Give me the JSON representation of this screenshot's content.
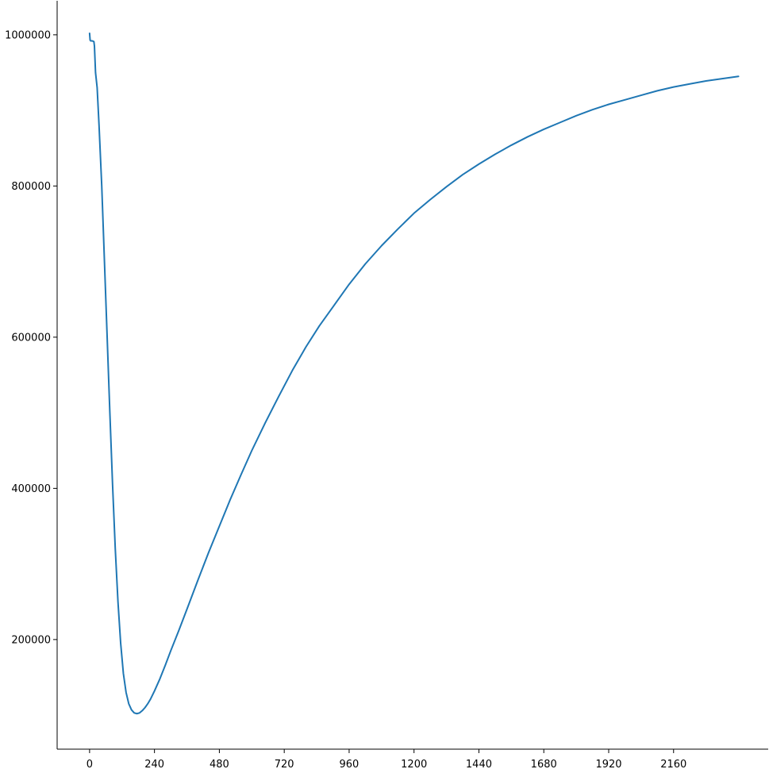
{
  "chart_data": {
    "type": "line",
    "title": "",
    "xlabel": "",
    "ylabel": "",
    "grid": false,
    "legend": "none",
    "xlim": [
      -120,
      2510
    ],
    "ylim": [
      55000,
      1045000
    ],
    "x_ticks": [
      0,
      240,
      480,
      720,
      960,
      1200,
      1440,
      1680,
      1920,
      2160
    ],
    "y_ticks": [
      200000,
      400000,
      600000,
      800000,
      1000000
    ],
    "series": [
      {
        "color": "#1f77b4",
        "x": [
          0,
          2,
          4,
          10,
          16,
          18,
          22,
          28,
          35,
          45,
          55,
          65,
          75,
          85,
          95,
          105,
          115,
          125,
          135,
          145,
          155,
          165,
          175,
          185,
          195,
          205,
          215,
          225,
          240,
          260,
          280,
          300,
          330,
          360,
          400,
          440,
          480,
          520,
          560,
          600,
          650,
          700,
          750,
          800,
          850,
          900,
          960,
          1020,
          1080,
          1140,
          1200,
          1260,
          1320,
          1380,
          1440,
          1500,
          1560,
          1620,
          1680,
          1740,
          1800,
          1860,
          1920,
          1980,
          2040,
          2100,
          2160,
          2220,
          2280,
          2340,
          2400
        ],
        "y": [
          1002000,
          993000,
          992000,
          992000,
          991000,
          985000,
          950000,
          930000,
          880000,
          800000,
          700000,
          600000,
          500000,
          405000,
          320000,
          250000,
          195000,
          155000,
          130000,
          115000,
          107000,
          103000,
          102000,
          103000,
          106000,
          110000,
          115000,
          121000,
          132000,
          148000,
          166000,
          185000,
          212000,
          240000,
          278000,
          315000,
          350000,
          385000,
          418000,
          450000,
          487000,
          522000,
          556000,
          587000,
          615000,
          640000,
          670000,
          697000,
          721000,
          743000,
          764000,
          782000,
          799000,
          815000,
          829000,
          842000,
          854000,
          865000,
          875000,
          884000,
          893000,
          901000,
          908000,
          914000,
          920000,
          926000,
          931000,
          935000,
          939000,
          942000,
          945000
        ]
      }
    ]
  }
}
